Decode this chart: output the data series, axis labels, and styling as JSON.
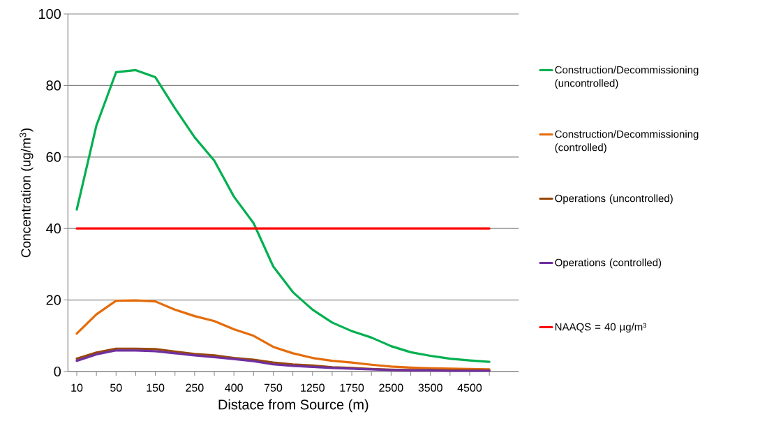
{
  "chart_data": {
    "type": "line",
    "xlabel": "Distace from Source (m)",
    "ylabel": "Concentration (ug/m$^{3}$)",
    "categories": [
      "10",
      null,
      "50",
      null,
      "150",
      null,
      "250",
      null,
      "400",
      null,
      "750",
      null,
      "1250",
      null,
      "1750",
      null,
      "2500",
      null,
      "3500",
      null,
      "4500",
      null
    ],
    "ylim": [
      0,
      100
    ],
    "yticks": [
      0,
      20,
      40,
      60,
      80,
      100
    ],
    "grid": "y",
    "legend": "right",
    "marker": "none",
    "line_style": "solid",
    "series": [
      {
        "name": "Construction/Decommissioning (uncontrolled)",
        "color": "#00b050",
        "values": [
          45.3,
          68.8,
          83.7,
          84.3,
          82.3,
          73.6,
          65.5,
          59.0,
          48.9,
          41.5,
          29.4,
          22.2,
          17.3,
          13.7,
          11.3,
          9.5,
          7.1,
          5.4,
          4.4,
          3.6,
          3.1,
          2.7
        ]
      },
      {
        "name": "Construction/Decommissioning (controlled)",
        "color": "#e46c0a",
        "values": [
          10.6,
          16.0,
          19.8,
          19.9,
          19.6,
          17.3,
          15.5,
          14.1,
          11.8,
          10.0,
          6.9,
          5.1,
          3.8,
          3.0,
          2.5,
          1.9,
          1.4,
          1.1,
          0.9,
          0.8,
          0.7,
          0.6
        ]
      },
      {
        "name": "Operations (uncontrolled)",
        "color": "#984807",
        "values": [
          3.6,
          5.3,
          6.4,
          6.4,
          6.3,
          5.6,
          4.9,
          4.5,
          3.8,
          3.3,
          2.5,
          2.0,
          1.7,
          1.2,
          1.0,
          0.7,
          0.5,
          0.4,
          0.4,
          0.3,
          0.3,
          0.3
        ]
      },
      {
        "name": "Operations (controlled)",
        "color": "#7030a0",
        "values": [
          3.0,
          4.8,
          5.9,
          5.9,
          5.7,
          5.1,
          4.5,
          4.0,
          3.5,
          2.9,
          2.0,
          1.6,
          1.3,
          1.0,
          0.8,
          0.6,
          0.4,
          0.3,
          0.3,
          0.2,
          0.2,
          0.2
        ]
      },
      {
        "name": "NAAQS = 40 µg/m³",
        "color": "#ff0000",
        "values": [
          40,
          40,
          40,
          40,
          40,
          40,
          40,
          40,
          40,
          40,
          40,
          40,
          40,
          40,
          40,
          40,
          40,
          40,
          40,
          40,
          40,
          40
        ]
      }
    ]
  }
}
